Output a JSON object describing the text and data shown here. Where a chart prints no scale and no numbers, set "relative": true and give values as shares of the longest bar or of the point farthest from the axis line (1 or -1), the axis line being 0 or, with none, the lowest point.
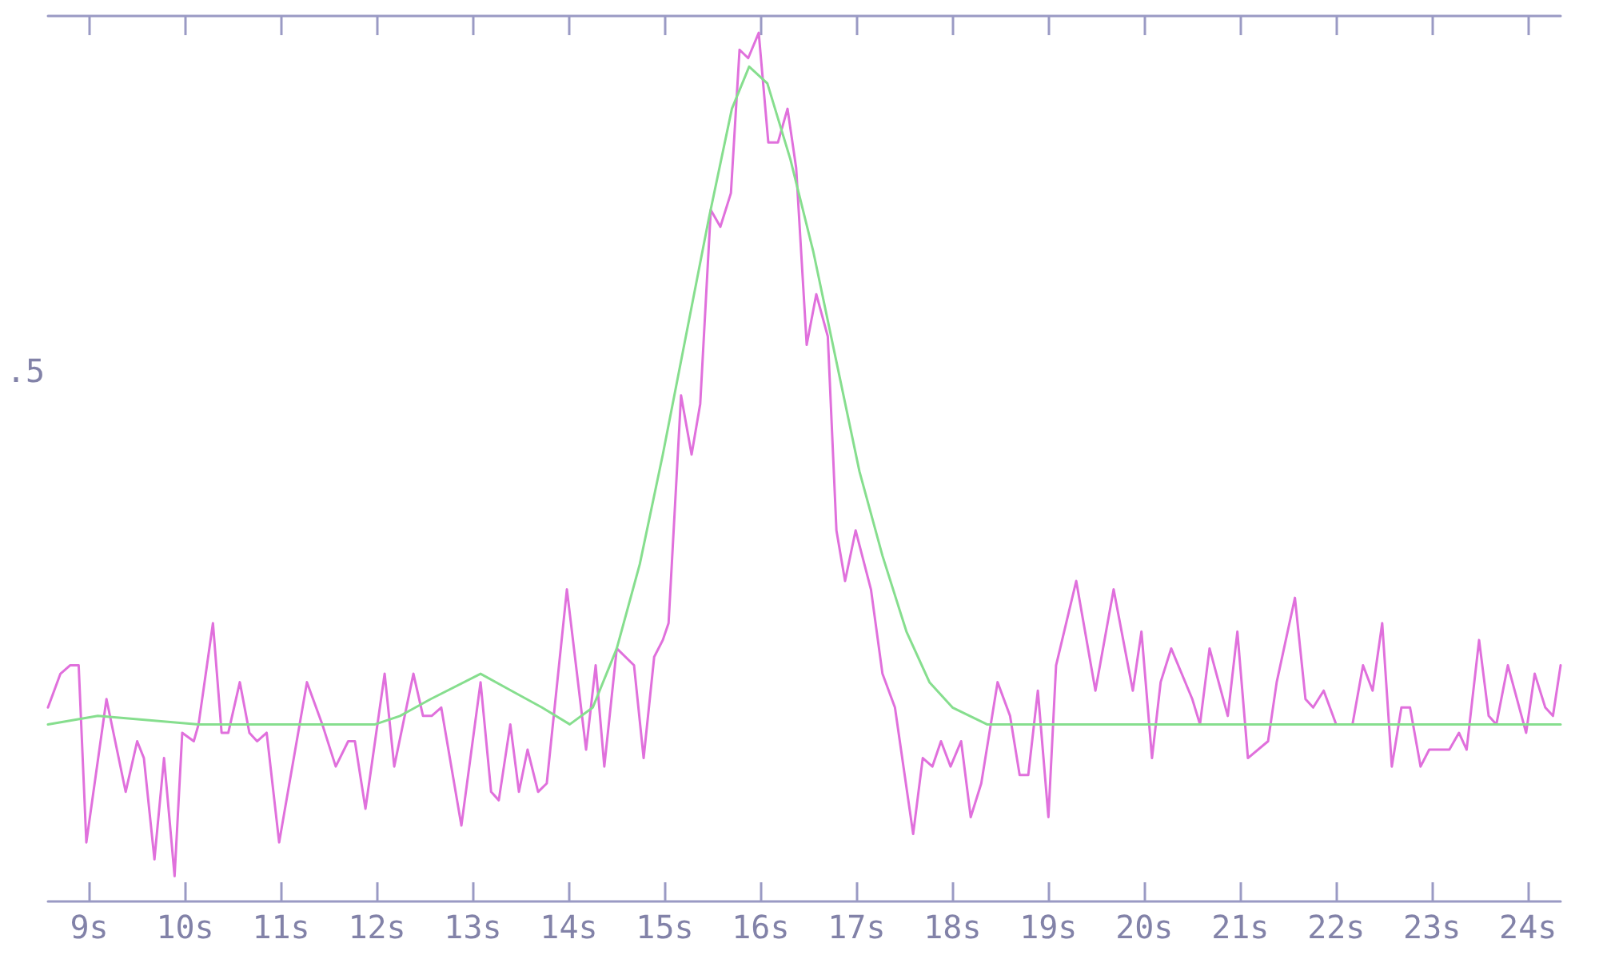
{
  "chart_data": {
    "type": "line",
    "relative": true,
    "xlim": [
      8.57,
      24.34
    ],
    "xticks": [
      {
        "value": 9,
        "label": "9s"
      },
      {
        "value": 10,
        "label": "10s"
      },
      {
        "value": 11,
        "label": "11s"
      },
      {
        "value": 12,
        "label": "12s"
      },
      {
        "value": 13,
        "label": "13s"
      },
      {
        "value": 14,
        "label": "14s"
      },
      {
        "value": 15,
        "label": "15s"
      },
      {
        "value": 16,
        "label": "16s"
      },
      {
        "value": 17,
        "label": "17s"
      },
      {
        "value": 18,
        "label": "18s"
      },
      {
        "value": 19,
        "label": "19s"
      },
      {
        "value": 20,
        "label": "20s"
      },
      {
        "value": 21,
        "label": "21s"
      },
      {
        "value": 22,
        "label": "22s"
      },
      {
        "value": 23,
        "label": "23s"
      },
      {
        "value": 24,
        "label": "24s"
      }
    ],
    "annotations": [
      ".5"
    ],
    "series": [
      {
        "color": "#e070dc",
        "x": [
          8.57,
          8.7,
          8.8,
          8.89,
          8.97,
          9.18,
          9.38,
          9.5,
          9.57,
          9.68,
          9.78,
          9.89,
          9.97,
          10.09,
          10.14,
          10.29,
          10.38,
          10.45,
          10.57,
          10.67,
          10.75,
          10.85,
          10.98,
          11.27,
          11.43,
          11.57,
          11.7,
          11.77,
          11.88,
          12.08,
          12.18,
          12.38,
          12.48,
          12.57,
          12.67,
          12.88,
          13.08,
          13.19,
          13.27,
          13.39,
          13.48,
          13.57,
          13.68,
          13.77,
          13.98,
          14.18,
          14.28,
          14.37,
          14.5,
          14.68,
          14.78,
          14.89,
          14.98,
          15.04,
          15.17,
          15.28,
          15.37,
          15.48,
          15.58,
          15.69,
          15.78,
          15.87,
          15.98,
          16.08,
          16.18,
          16.28,
          16.37,
          16.48,
          16.58,
          16.7,
          16.79,
          16.88,
          16.99,
          17.15,
          17.27,
          17.4,
          17.59,
          17.69,
          17.79,
          17.88,
          17.98,
          18.09,
          18.19,
          18.3,
          18.47,
          18.6,
          18.7,
          18.79,
          18.89,
          19.0,
          19.08,
          19.29,
          19.49,
          19.68,
          19.88,
          19.97,
          20.08,
          20.17,
          20.28,
          20.5,
          20.58,
          20.68,
          20.87,
          20.97,
          21.08,
          21.29,
          21.38,
          21.57,
          21.68,
          21.76,
          21.87,
          22.0,
          22.17,
          22.28,
          22.38,
          22.48,
          22.58,
          22.68,
          22.77,
          22.88,
          22.97,
          23.08,
          23.18,
          23.28,
          23.36,
          23.49,
          23.59,
          23.67,
          23.79,
          23.98,
          24.07,
          24.18,
          24.26,
          24.34
        ],
        "values": [
          0.2,
          0.24,
          0.25,
          0.25,
          0.04,
          0.21,
          0.1,
          0.16,
          0.14,
          0.02,
          0.14,
          0.0,
          0.17,
          0.16,
          0.18,
          0.3,
          0.17,
          0.17,
          0.23,
          0.17,
          0.16,
          0.17,
          0.04,
          0.23,
          0.18,
          0.13,
          0.16,
          0.16,
          0.08,
          0.24,
          0.13,
          0.24,
          0.19,
          0.19,
          0.2,
          0.06,
          0.23,
          0.1,
          0.09,
          0.18,
          0.1,
          0.15,
          0.1,
          0.11,
          0.34,
          0.15,
          0.25,
          0.13,
          0.27,
          0.25,
          0.14,
          0.26,
          0.28,
          0.3,
          0.57,
          0.5,
          0.56,
          0.79,
          0.77,
          0.81,
          0.98,
          0.97,
          1.0,
          0.87,
          0.87,
          0.91,
          0.84,
          0.63,
          0.69,
          0.64,
          0.41,
          0.35,
          0.41,
          0.34,
          0.24,
          0.2,
          0.05,
          0.14,
          0.13,
          0.16,
          0.13,
          0.16,
          0.07,
          0.11,
          0.23,
          0.19,
          0.12,
          0.12,
          0.22,
          0.07,
          0.25,
          0.35,
          0.22,
          0.34,
          0.22,
          0.29,
          0.14,
          0.23,
          0.27,
          0.21,
          0.18,
          0.27,
          0.19,
          0.29,
          0.14,
          0.16,
          0.23,
          0.33,
          0.21,
          0.2,
          0.22,
          0.18,
          0.18,
          0.25,
          0.22,
          0.3,
          0.13,
          0.2,
          0.2,
          0.13,
          0.15,
          0.15,
          0.15,
          0.17,
          0.15,
          0.28,
          0.19,
          0.18,
          0.25,
          0.17,
          0.24,
          0.2,
          0.19,
          0.25
        ]
      },
      {
        "color": "#86de8e",
        "x": [
          8.57,
          9.09,
          10.14,
          11.98,
          12.24,
          12.56,
          13.08,
          13.4,
          13.72,
          14.01,
          14.25,
          14.5,
          14.74,
          14.98,
          15.22,
          15.46,
          15.7,
          15.88,
          16.07,
          16.31,
          16.55,
          16.79,
          17.03,
          17.27,
          17.52,
          17.76,
          18.0,
          18.36,
          24.34
        ],
        "values": [
          0.18,
          0.19,
          0.18,
          0.18,
          0.19,
          0.21,
          0.24,
          0.22,
          0.2,
          0.18,
          0.2,
          0.27,
          0.37,
          0.5,
          0.64,
          0.78,
          0.91,
          0.96,
          0.94,
          0.85,
          0.74,
          0.61,
          0.48,
          0.38,
          0.29,
          0.23,
          0.2,
          0.18,
          0.18
        ]
      }
    ]
  }
}
